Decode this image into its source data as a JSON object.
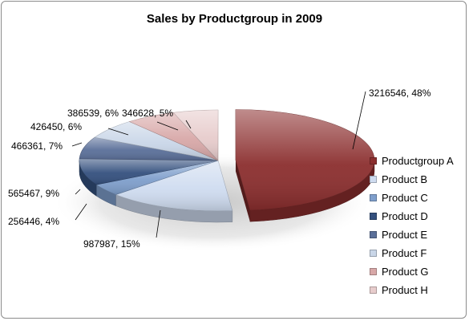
{
  "chart_data": {
    "type": "pie",
    "title": "Sales by Productgroup in 2009",
    "categories": [
      "Productgroup A",
      "Product B",
      "Product C",
      "Product D",
      "Product E",
      "Product F",
      "Product G",
      "Product H"
    ],
    "values": [
      3216546,
      987987,
      256446,
      565467,
      466361,
      426450,
      386539,
      346628
    ],
    "percent_labels": [
      "48%",
      "15%",
      "4%",
      "9%",
      "7%",
      "6%",
      "6%",
      "5%"
    ],
    "data_labels": [
      "3216546, 48%",
      "987987, 15%",
      "256446, 4%",
      "565467, 9%",
      "466361, 7%",
      "426450, 6%",
      "386539, 6%",
      "346628, 5%"
    ],
    "colors": [
      "#8b2e2e",
      "#cfdcf0",
      "#7f9fcc",
      "#34507e",
      "#5a6f99",
      "#c9d6e8",
      "#d8a8a8",
      "#e7cccc"
    ],
    "legend_position": "right",
    "style": "3d-exploded",
    "grid": false
  }
}
